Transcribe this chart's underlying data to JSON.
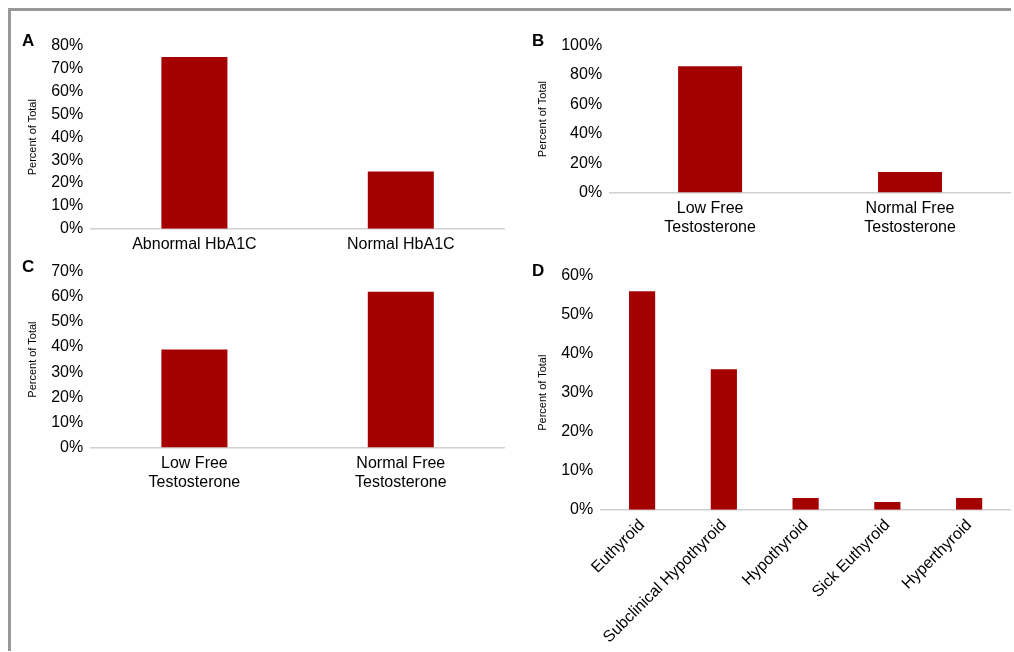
{
  "chart_data": [
    {
      "type": "bar",
      "title": "A",
      "ylabel": "Percent of Total",
      "categories": [
        "Abnormal HbA1C",
        "Normal HbA1C"
      ],
      "values": [
        75,
        25
      ],
      "color": "#a50000",
      "ylim": [
        0,
        80
      ],
      "yticks": [
        {
          "value": 0,
          "label": "0%"
        },
        {
          "value": 10,
          "label": "10%"
        },
        {
          "value": 20,
          "label": "20%"
        },
        {
          "value": 30,
          "label": "30%"
        },
        {
          "value": 40,
          "label": "40%"
        },
        {
          "value": 50,
          "label": "50%"
        },
        {
          "value": 60,
          "label": "60%"
        },
        {
          "value": 70,
          "label": "70%"
        },
        {
          "value": 80,
          "label": "80%"
        }
      ],
      "grid": false,
      "legend": false
    },
    {
      "type": "bar",
      "title": "B",
      "ylabel": "Percent of Total",
      "categories": [
        "Low Free Testosterone",
        "Normal Free Testosterone"
      ],
      "values": [
        86,
        14
      ],
      "color": "#a50000",
      "ylim": [
        0,
        100
      ],
      "yticks": [
        {
          "value": 0,
          "label": "0%"
        },
        {
          "value": 20,
          "label": "20%"
        },
        {
          "value": 40,
          "label": "40%"
        },
        {
          "value": 60,
          "label": "60%"
        },
        {
          "value": 80,
          "label": "80%"
        },
        {
          "value": 100,
          "label": "100%"
        }
      ],
      "grid": false,
      "legend": false
    },
    {
      "type": "bar",
      "title": "C",
      "ylabel": "Percent of Total",
      "categories": [
        "Low Free Testosterone",
        "Normal Free Testosterone"
      ],
      "values": [
        39,
        62
      ],
      "color": "#a50000",
      "ylim": [
        0,
        70
      ],
      "yticks": [
        {
          "value": 0,
          "label": "0%"
        },
        {
          "value": 10,
          "label": "10%"
        },
        {
          "value": 20,
          "label": "20%"
        },
        {
          "value": 30,
          "label": "30%"
        },
        {
          "value": 40,
          "label": "40%"
        },
        {
          "value": 50,
          "label": "50%"
        },
        {
          "value": 60,
          "label": "60%"
        },
        {
          "value": 70,
          "label": "70%"
        }
      ],
      "grid": false,
      "legend": false
    },
    {
      "type": "bar",
      "title": "D",
      "ylabel": "Percent of Total",
      "categories": [
        "Euthyroid",
        "Subclinical Hypothyroid",
        "Hypothyroid",
        "Sick Euthyroid",
        "Hyperthyroid"
      ],
      "values": [
        56,
        36,
        3,
        2,
        3
      ],
      "color": "#a50000",
      "ylim": [
        0,
        60
      ],
      "yticks": [
        {
          "value": 0,
          "label": "0%"
        },
        {
          "value": 10,
          "label": "10%"
        },
        {
          "value": 20,
          "label": "20%"
        },
        {
          "value": 30,
          "label": "30%"
        },
        {
          "value": 40,
          "label": "40%"
        },
        {
          "value": 50,
          "label": "50%"
        },
        {
          "value": 60,
          "label": "60%"
        }
      ],
      "grid": false,
      "legend": false
    }
  ]
}
